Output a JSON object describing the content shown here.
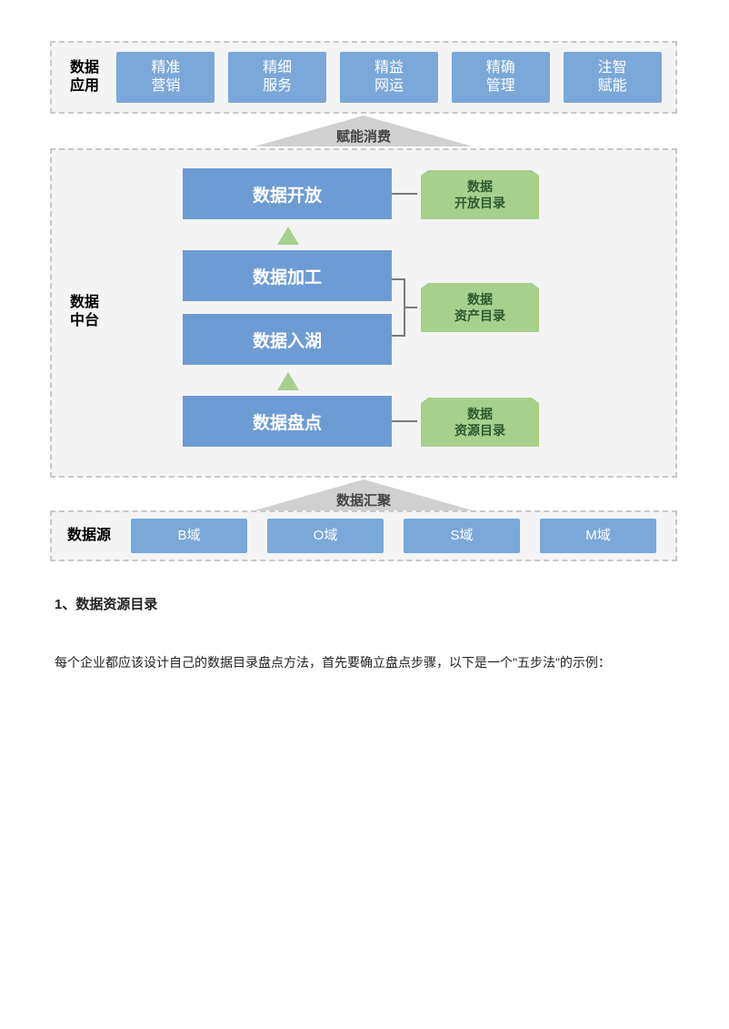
{
  "colors": {
    "blue": "#6d9cd4",
    "lightblue": "#7aa8d8",
    "green": "#a8d08d",
    "grey": "#d0d0d0",
    "dashBg": "#f4f4f4"
  },
  "top": {
    "label": "数据\n应用",
    "items": [
      "精准\n营销",
      "精细\n服务",
      "精益\n网运",
      "精确\n管理",
      "注智\n赋能"
    ]
  },
  "arrow1": "赋能消费",
  "mid": {
    "label": "数据\n中台",
    "boxes": [
      "数据开放",
      "数据加工",
      "数据入湖",
      "数据盘点"
    ],
    "tags": [
      "数据\n开放目录",
      "数据\n资产目录",
      "数据\n资源目录"
    ]
  },
  "arrow2": "数据汇聚",
  "bottom": {
    "label": "数据源",
    "items": [
      "B域",
      "O域",
      "S域",
      "M域"
    ]
  },
  "heading": "1、数据资源目录",
  "para": "每个企业都应该设计自己的数据目录盘点方法，首先要确立盘点步骤，以下是一个\"五步法\"的示例："
}
